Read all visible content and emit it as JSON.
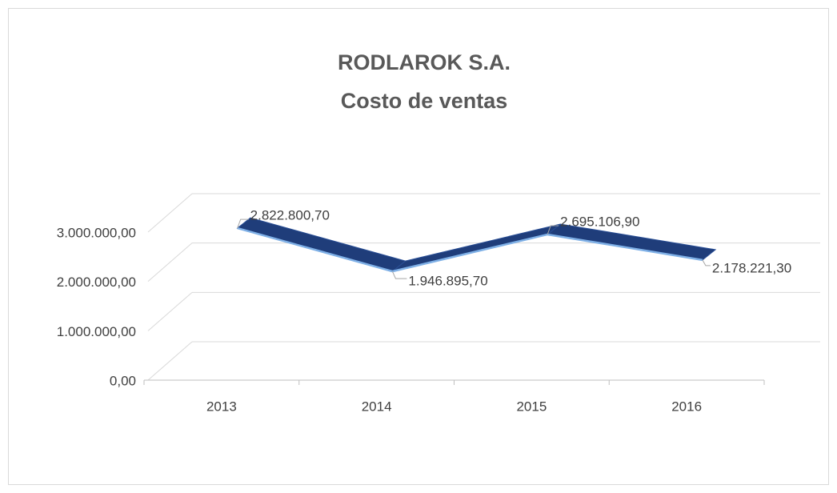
{
  "chart_data": {
    "type": "line3d",
    "title": "RODLAROK S.A.",
    "subtitle": "Costo de ventas",
    "categories": [
      "2013",
      "2014",
      "2015",
      "2016"
    ],
    "values": [
      2822800.7,
      1946895.7,
      2695106.9,
      2178221.3
    ],
    "value_labels": [
      "2.822.800,70",
      "1.946.895,70",
      "2.695.106,90",
      "2.178.221,30"
    ],
    "color": "#1f3d7a",
    "ylim": [
      0,
      3000000
    ],
    "yticks": [
      {
        "value": 0,
        "label": "0,00"
      },
      {
        "value": 1000000,
        "label": "1.000.000,00"
      },
      {
        "value": 2000000,
        "label": "2.000.000,00"
      },
      {
        "value": 3000000,
        "label": "3.000.000,00"
      }
    ],
    "grid": true
  }
}
